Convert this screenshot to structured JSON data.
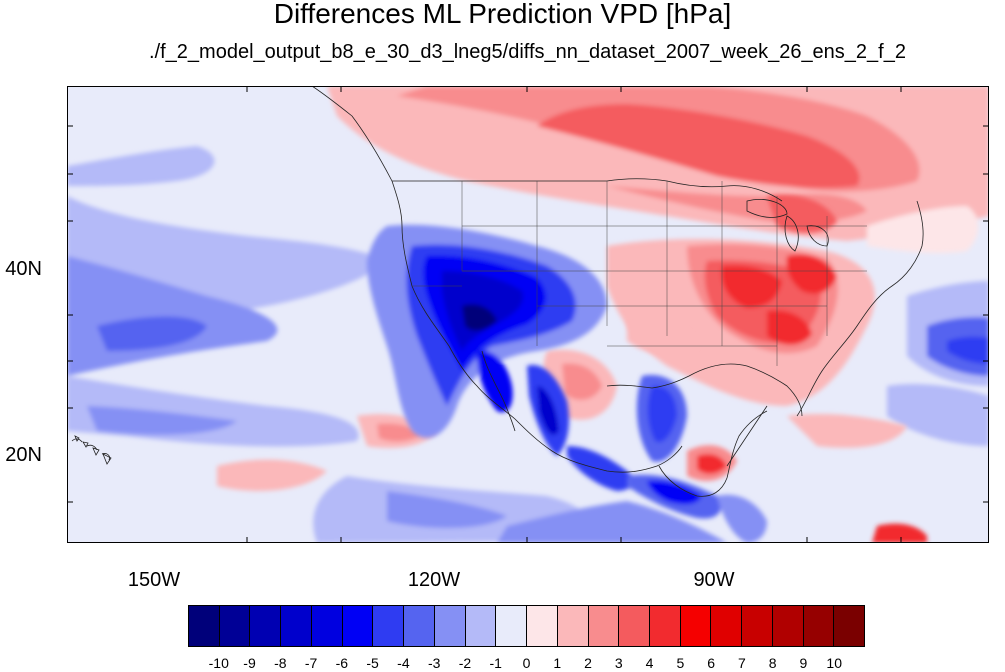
{
  "title": "Differences ML Prediction VPD [hPa]",
  "subtitle": "./f_2_model_output_b8_e_30_d3_lneg5/diffs_nn_dataset_2007_week_26_ens_2_f_2",
  "map": {
    "projection": "cylindrical equidistant",
    "lat_ticks": [
      "40N",
      "20N"
    ],
    "lon_ticks": [
      "150W",
      "120W",
      "90W"
    ],
    "ocean_background": "#e8ebfa"
  },
  "colorbar": {
    "labels": [
      "-10",
      "-9",
      "-8",
      "-7",
      "-6",
      "-5",
      "-4",
      "-3",
      "-2",
      "-1",
      "0",
      "1",
      "2",
      "3",
      "4",
      "5",
      "6",
      "7",
      "8",
      "9",
      "10"
    ],
    "colors": [
      "#00007a",
      "#000096",
      "#0000b2",
      "#0000cc",
      "#0000e0",
      "#0000f5",
      "#2f3cf2",
      "#5564f0",
      "#8590f4",
      "#b4baf8",
      "#e8ebfa",
      "#fde6e8",
      "#fbb8ba",
      "#f88c8e",
      "#f45b5e",
      "#f22b2f",
      "#f50000",
      "#e00000",
      "#c80000",
      "#b00000",
      "#960000",
      "#7a0000"
    ]
  }
}
